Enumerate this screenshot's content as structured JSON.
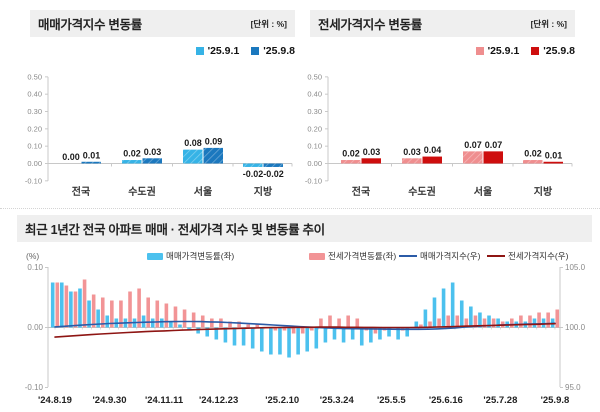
{
  "top_left": {
    "title": "매매가격지수 변동률",
    "unit": "[단위 : %]"
  },
  "top_right": {
    "title": "전세가격지수 변동률",
    "unit": "[단위 : %]"
  },
  "bottom": {
    "title": "최근 1년간 전국 아파트 매매 · 전세가격 지수 및 변동률 추이",
    "left_axis_unit": "(%)"
  },
  "colors": {
    "header_bg": "#efefef",
    "light_blue": "#36B3E6",
    "dark_blue": "#1B78BE",
    "pink": "#EF8E8F",
    "dark_red": "#CE0E0E",
    "trend_blue_bar": "#4CC1EE",
    "trend_pink_bar": "#F29496",
    "sales_index_line": "#2B5BA7",
    "jeonse_index_line": "#8E1513",
    "axis_gray": "#c9c9c9"
  },
  "chart_data": [
    {
      "type": "bar",
      "id": "sales",
      "title": "매매가격지수 변동률",
      "unit": "[단위 : %]",
      "categories": [
        "전국",
        "수도권",
        "서울",
        "지방"
      ],
      "series": [
        {
          "name": "'25.9.1",
          "color": "#36B3E6",
          "hatch": true,
          "values": [
            0.0,
            0.02,
            0.08,
            -0.02
          ]
        },
        {
          "name": "'25.9.8",
          "color": "#1B78BE",
          "hatch": true,
          "values": [
            0.01,
            0.03,
            0.09,
            -0.02
          ]
        }
      ],
      "ylim": [
        -0.1,
        0.5
      ],
      "yticks": [
        0.5,
        0.4,
        0.3,
        0.2,
        0.1,
        0.0,
        -0.1
      ],
      "grid": false,
      "legend_position": "top-right"
    },
    {
      "type": "bar",
      "id": "jeonse",
      "title": "전세가격지수 변동률",
      "unit": "[단위 : %]",
      "categories": [
        "전국",
        "수도권",
        "서울",
        "지방"
      ],
      "series": [
        {
          "name": "'25.9.1",
          "color": "#EF8E8F",
          "hatch": true,
          "values": [
            0.02,
            0.03,
            0.07,
            0.02
          ]
        },
        {
          "name": "'25.9.8",
          "color": "#CE0E0E",
          "hatch": false,
          "values": [
            0.03,
            0.04,
            0.07,
            0.01
          ]
        }
      ],
      "ylim": [
        -0.1,
        0.5
      ],
      "yticks": [
        0.5,
        0.4,
        0.3,
        0.2,
        0.1,
        0.0,
        -0.1
      ],
      "grid": false,
      "legend_position": "top-right"
    },
    {
      "type": "combo",
      "id": "trend",
      "title": "최근 1년간 전국 아파트 매매 · 전세가격 지수 및 변동률 추이",
      "n_points": 56,
      "x_tick_labels": [
        "'24.8.19",
        "'24.9.30",
        "'24.11.11",
        "'24.12.23",
        "'25.2.10",
        "'25.3.24",
        "'25.5.5",
        "'25.6.16",
        "'25.7.28",
        "'25.9.8"
      ],
      "x_tick_indices": [
        0,
        6,
        12,
        18,
        25,
        31,
        37,
        43,
        49,
        55
      ],
      "left_axis": {
        "label": "(%)",
        "ticks": [
          0.1,
          0.0,
          -0.1
        ],
        "range": [
          -0.1,
          0.1
        ]
      },
      "right_axis": {
        "ticks": [
          105.0,
          100.0,
          95.0
        ],
        "range": [
          95.0,
          105.0
        ]
      },
      "series": [
        {
          "name": "매매가격변동률(좌)",
          "type": "bar",
          "axis": "left",
          "color": "#4CC1EE",
          "values": [
            0.075,
            0.075,
            0.06,
            0.065,
            0.045,
            0.03,
            0.02,
            0.015,
            0.015,
            0.015,
            0.02,
            0.015,
            0.015,
            0.01,
            0.005,
            -0.005,
            -0.01,
            -0.015,
            -0.02,
            -0.025,
            -0.03,
            -0.03,
            -0.035,
            -0.04,
            -0.045,
            -0.045,
            -0.05,
            -0.045,
            -0.04,
            -0.035,
            -0.025,
            -0.02,
            -0.025,
            -0.02,
            -0.03,
            -0.025,
            -0.02,
            -0.015,
            -0.02,
            -0.015,
            0.01,
            0.03,
            0.05,
            0.065,
            0.075,
            0.045,
            0.035,
            0.025,
            0.02,
            0.015,
            0.01,
            0.01,
            0.01,
            0.015,
            0.015,
            0.015
          ]
        },
        {
          "name": "전세가격변동률(좌)",
          "type": "bar",
          "axis": "left",
          "color": "#F29496",
          "values": [
            0.075,
            0.07,
            0.06,
            0.08,
            0.055,
            0.05,
            0.045,
            0.045,
            0.06,
            0.065,
            0.05,
            0.045,
            0.04,
            0.035,
            0.03,
            0.025,
            0.02,
            0.015,
            0.015,
            0.01,
            0.01,
            0.005,
            0.005,
            0.0,
            -0.005,
            -0.005,
            -0.01,
            -0.01,
            -0.005,
            0.015,
            0.02,
            0.015,
            0.02,
            0.015,
            -0.005,
            -0.01,
            -0.005,
            0.0,
            -0.005,
            0.0,
            0.005,
            0.01,
            0.015,
            0.02,
            0.02,
            0.015,
            0.02,
            0.015,
            0.015,
            0.01,
            0.015,
            0.02,
            0.02,
            0.025,
            0.025,
            0.03
          ]
        },
        {
          "name": "매매가격지수(우)",
          "type": "line",
          "axis": "right",
          "color": "#2B5BA7",
          "values": [
            100.05,
            100.1,
            100.15,
            100.2,
            100.25,
            100.29,
            100.33,
            100.36,
            100.39,
            100.42,
            100.44,
            100.46,
            100.48,
            100.49,
            100.5,
            100.5,
            100.49,
            100.47,
            100.45,
            100.42,
            100.38,
            100.34,
            100.3,
            100.26,
            100.21,
            100.16,
            100.12,
            100.07,
            100.03,
            99.99,
            99.96,
            99.93,
            99.91,
            99.9,
            99.89,
            99.88,
            99.87,
            99.86,
            99.85,
            99.85,
            99.85,
            99.86,
            99.88,
            99.92,
            99.97,
            100.03,
            100.08,
            100.13,
            100.17,
            100.2,
            100.23,
            100.26,
            100.28,
            100.3,
            100.32,
            100.35
          ]
        },
        {
          "name": "전세가격지수(우)",
          "type": "line",
          "axis": "right",
          "color": "#8E1513",
          "values": [
            99.2,
            99.26,
            99.31,
            99.36,
            99.41,
            99.46,
            99.5,
            99.54,
            99.58,
            99.62,
            99.66,
            99.69,
            99.72,
            99.75,
            99.78,
            99.81,
            99.84,
            99.86,
            99.88,
            99.9,
            99.92,
            99.94,
            99.96,
            99.98,
            99.99,
            100.0,
            100.01,
            100.02,
            100.02,
            100.03,
            100.03,
            100.03,
            100.02,
            100.02,
            100.01,
            100.01,
            100.0,
            100.0,
            100.0,
            100.0,
            100.01,
            100.02,
            100.04,
            100.06,
            100.08,
            100.11,
            100.13,
            100.15,
            100.17,
            100.19,
            100.21,
            100.23,
            100.25,
            100.27,
            100.29,
            100.32
          ]
        }
      ]
    }
  ]
}
